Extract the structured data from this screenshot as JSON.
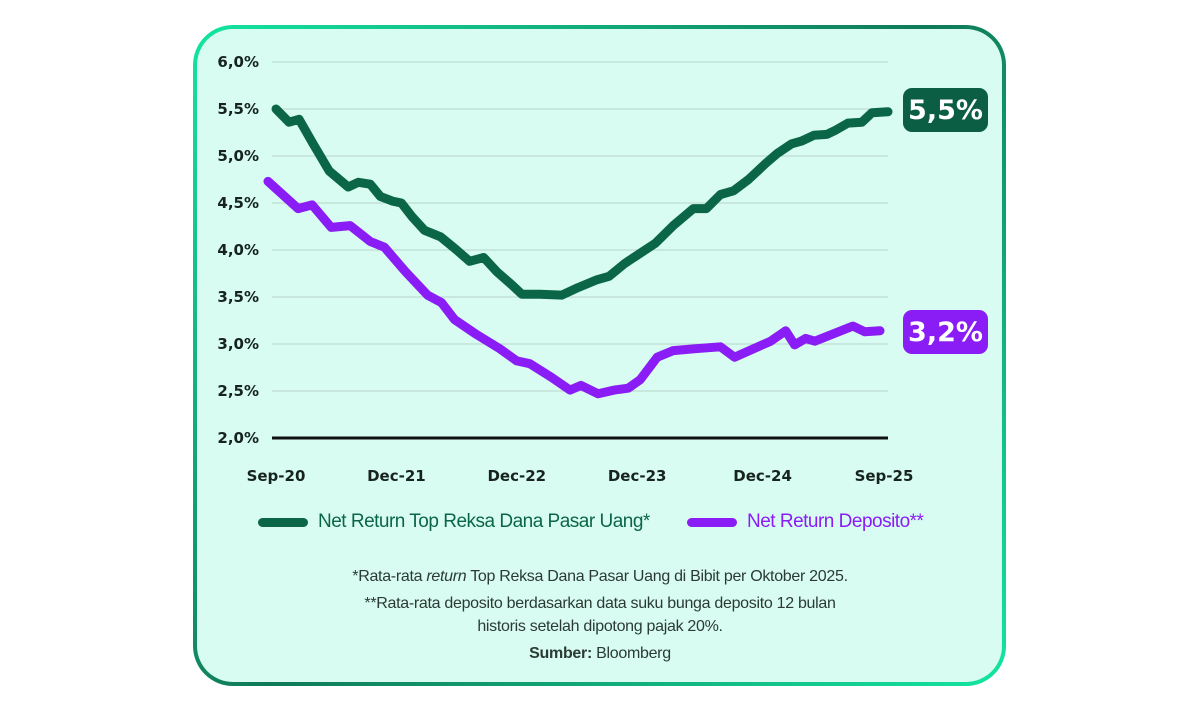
{
  "chart_data": {
    "type": "line",
    "title": "",
    "xlabel": "",
    "ylabel": "",
    "x_unit": "months since Sep-20",
    "ylim": [
      2.0,
      6.0
    ],
    "xlim": [
      0,
      61
    ],
    "y_ticks": [
      "2,0%",
      "2,5%",
      "3,0%",
      "3,5%",
      "4,0%",
      "4,5%",
      "5,0%",
      "5,5%",
      "6,0%"
    ],
    "y_tick_values": [
      2.0,
      2.5,
      3.0,
      3.5,
      4.0,
      4.5,
      5.0,
      5.5,
      6.0
    ],
    "x_ticks": [
      {
        "label": "Sep-20",
        "month": 0
      },
      {
        "label": "Dec-21",
        "month": 12
      },
      {
        "label": "Dec-22",
        "month": 24
      },
      {
        "label": "Dec-23",
        "month": 36
      },
      {
        "label": "Dec-24",
        "month": 48.5
      },
      {
        "label": "Sep-25",
        "month": 60.6
      }
    ],
    "grid": true,
    "legend_position": "bottom",
    "series": [
      {
        "name": "Net Return Top Reksa Dana Pasar Uang*",
        "color": "#0b6647",
        "end_label": "5,5%",
        "x": [
          0,
          1.3,
          2.3,
          3.7,
          5.3,
          7.2,
          8.2,
          9.4,
          10.4,
          11.6,
          12.5,
          13.6,
          14.8,
          16.4,
          17.9,
          19.3,
          20.7,
          22.0,
          23.5,
          24.5,
          26.3,
          28.5,
          30.1,
          31.9,
          33.2,
          34.8,
          37.8,
          39.6,
          41.6,
          42.9,
          44.3,
          45.6,
          47.1,
          48.8,
          50.0,
          51.4,
          52.4,
          53.6,
          54.9,
          55.7,
          57.0,
          58.4,
          59.4,
          61
        ],
        "y": [
          5.5,
          5.36,
          5.39,
          5.13,
          4.84,
          4.67,
          4.72,
          4.7,
          4.57,
          4.52,
          4.5,
          4.35,
          4.21,
          4.14,
          4.01,
          3.88,
          3.92,
          3.77,
          3.63,
          3.53,
          3.53,
          3.52,
          3.6,
          3.68,
          3.72,
          3.86,
          4.07,
          4.26,
          4.44,
          4.44,
          4.59,
          4.63,
          4.75,
          4.92,
          5.03,
          5.13,
          5.16,
          5.22,
          5.23,
          5.27,
          5.35,
          5.36,
          5.46,
          5.47
        ]
      },
      {
        "name": "Net Return Deposito**",
        "color": "#8a1cf5",
        "end_label": "3,2%",
        "x": [
          -0.8,
          2.2,
          3.6,
          5.5,
          7.4,
          9.4,
          10.8,
          12.9,
          15.1,
          16.5,
          17.8,
          20.0,
          22.3,
          24.0,
          25.3,
          27.4,
          29.3,
          30.4,
          32.1,
          33.7,
          35.1,
          36.3,
          38.0,
          39.6,
          41.8,
          44.3,
          45.7,
          49.3,
          50.8,
          51.7,
          52.8,
          53.7,
          57.5,
          58.7,
          60.2
        ],
        "y": [
          4.73,
          4.44,
          4.48,
          4.24,
          4.26,
          4.09,
          4.03,
          3.77,
          3.52,
          3.44,
          3.26,
          3.1,
          2.95,
          2.82,
          2.79,
          2.65,
          2.51,
          2.56,
          2.47,
          2.51,
          2.53,
          2.62,
          2.86,
          2.93,
          2.95,
          2.97,
          2.86,
          3.03,
          3.14,
          2.99,
          3.06,
          3.03,
          3.19,
          3.13,
          3.14
        ]
      }
    ]
  },
  "notes": {
    "line1_prefix": "*Rata-rata ",
    "line1_italic": "return",
    "line1_suffix": " Top Reksa Dana Pasar Uang di Bibit per Oktober 2025.",
    "line2": "**Rata-rata deposito berdasarkan data suku bunga deposito 12 bulan",
    "line3": "historis setelah dipotong pajak 20%.",
    "source_label": "Sumber:",
    "source_value": " Bloomberg"
  }
}
